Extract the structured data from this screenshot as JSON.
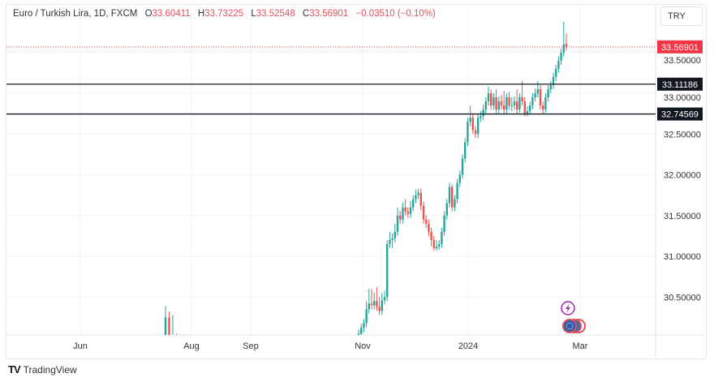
{
  "header": {
    "symbol": "Euro / Turkish Lira, 1D, FXCM",
    "open_label": "O",
    "open": "33.60411",
    "high_label": "H",
    "high": "33.73225",
    "low_label": "L",
    "low": "33.52548",
    "close_label": "C",
    "close": "33.56901",
    "change": "−0.03510 (−0.10%)"
  },
  "currency_button": "TRY",
  "footer": {
    "brand": "TradingView",
    "logo": "TV"
  },
  "colors": {
    "up": "#26a69a",
    "down": "#ef5350",
    "last_price": "#f23645",
    "line": "#131722"
  },
  "icons": [
    "lightning-event-icon",
    "economic-events-flags-icon"
  ],
  "chart_data": {
    "type": "candlestick",
    "ylim": [
      30.03,
      34.05
    ],
    "y_ticks": [
      "30.50000",
      "31.00000",
      "31.50000",
      "32.00000",
      "32.50000",
      "33.00000",
      "33.50000"
    ],
    "y_tick_values": [
      30.5,
      31.0,
      31.5,
      32.0,
      32.5,
      33.0,
      33.5
    ],
    "x_ticks": [
      "Jun",
      "Aug",
      "Sep",
      "Nov",
      "2024",
      "Mar"
    ],
    "grid": true,
    "last_price": {
      "value": 33.56901,
      "label": "33.56901"
    },
    "horizontal_lines": [
      {
        "value": 33.11186,
        "label": "33.11186"
      },
      {
        "value": 32.74569,
        "label": "32.74569"
      }
    ],
    "july_candles": [
      [
        30.0,
        30.39,
        29.9,
        30.25
      ],
      [
        30.25,
        30.32,
        29.9,
        29.95
      ],
      [
        29.95,
        30.28,
        29.9,
        29.95
      ],
      [
        29.95,
        30.05,
        29.9,
        29.92
      ],
      [
        29.92,
        30.0,
        29.9,
        29.9
      ],
      [
        29.9,
        30.04,
        29.9,
        29.9
      ]
    ],
    "candles": [
      [
        30.0,
        30.1,
        29.95,
        30.05
      ],
      [
        30.05,
        30.17,
        30.0,
        30.12
      ],
      [
        30.12,
        30.23,
        30.07,
        30.18
      ],
      [
        30.18,
        30.45,
        30.13,
        30.35
      ],
      [
        30.35,
        30.6,
        30.3,
        30.42
      ],
      [
        30.42,
        30.6,
        30.35,
        30.4
      ],
      [
        30.4,
        30.55,
        30.35,
        30.45
      ],
      [
        30.45,
        30.62,
        30.33,
        30.38
      ],
      [
        30.38,
        30.5,
        30.28,
        30.33
      ],
      [
        30.33,
        30.55,
        30.28,
        30.46
      ],
      [
        30.46,
        30.58,
        30.41,
        30.5
      ],
      [
        30.5,
        31.2,
        30.45,
        31.15
      ],
      [
        31.15,
        31.3,
        31.1,
        31.2
      ],
      [
        31.2,
        31.28,
        31.1,
        31.22
      ],
      [
        31.22,
        31.4,
        31.17,
        31.3
      ],
      [
        31.3,
        31.6,
        31.25,
        31.5
      ],
      [
        31.5,
        31.56,
        31.4,
        31.45
      ],
      [
        31.45,
        31.66,
        31.4,
        31.6
      ],
      [
        31.6,
        31.7,
        31.5,
        31.55
      ],
      [
        31.55,
        31.6,
        31.47,
        31.52
      ],
      [
        31.52,
        31.68,
        31.47,
        31.6
      ],
      [
        31.6,
        31.75,
        31.55,
        31.7
      ],
      [
        31.7,
        31.82,
        31.65,
        31.75
      ],
      [
        31.75,
        31.83,
        31.7,
        31.78
      ],
      [
        31.78,
        31.83,
        31.57,
        31.62
      ],
      [
        31.62,
        31.67,
        31.4,
        31.45
      ],
      [
        31.45,
        31.5,
        31.35,
        31.4
      ],
      [
        31.4,
        31.45,
        31.25,
        31.3
      ],
      [
        31.3,
        31.35,
        31.12,
        31.2
      ],
      [
        31.2,
        31.25,
        31.07,
        31.1
      ],
      [
        31.1,
        31.2,
        31.07,
        31.12
      ],
      [
        31.12,
        31.2,
        31.08,
        31.15
      ],
      [
        31.15,
        31.35,
        31.1,
        31.3
      ],
      [
        31.3,
        31.55,
        31.25,
        31.5
      ],
      [
        31.5,
        31.7,
        31.45,
        31.65
      ],
      [
        31.65,
        31.9,
        31.6,
        31.85
      ],
      [
        31.85,
        31.88,
        31.55,
        31.6
      ],
      [
        31.6,
        31.75,
        31.55,
        31.7
      ],
      [
        31.7,
        31.95,
        31.65,
        31.9
      ],
      [
        31.9,
        32.05,
        31.85,
        32.0
      ],
      [
        32.0,
        32.25,
        31.95,
        32.2
      ],
      [
        32.2,
        32.45,
        32.15,
        32.4
      ],
      [
        32.4,
        32.7,
        32.35,
        32.65
      ],
      [
        32.65,
        32.85,
        32.6,
        32.7
      ],
      [
        32.7,
        32.75,
        32.5,
        32.55
      ],
      [
        32.55,
        32.6,
        32.45,
        32.5
      ],
      [
        32.5,
        32.75,
        32.45,
        32.7
      ],
      [
        32.7,
        32.78,
        32.65,
        32.72
      ],
      [
        32.72,
        32.86,
        32.67,
        32.8
      ],
      [
        32.8,
        32.95,
        32.75,
        32.9
      ],
      [
        32.9,
        33.08,
        32.85,
        33.0
      ],
      [
        33.0,
        33.05,
        32.8,
        32.85
      ],
      [
        32.85,
        33.0,
        32.8,
        32.95
      ],
      [
        32.95,
        33.05,
        32.75,
        32.8
      ],
      [
        32.8,
        32.96,
        32.75,
        32.9
      ],
      [
        32.9,
        32.98,
        32.8,
        32.85
      ],
      [
        32.85,
        33.03,
        32.74,
        32.8
      ],
      [
        32.8,
        33.0,
        32.75,
        32.95
      ],
      [
        32.95,
        33.02,
        32.8,
        32.85
      ],
      [
        32.85,
        32.95,
        32.78,
        32.85
      ],
      [
        32.85,
        32.96,
        32.8,
        32.9
      ],
      [
        32.9,
        33.05,
        32.75,
        32.8
      ],
      [
        32.8,
        33.0,
        32.76,
        32.95
      ],
      [
        32.95,
        33.15,
        32.85,
        32.9
      ],
      [
        32.9,
        32.95,
        32.72,
        32.75
      ],
      [
        32.75,
        32.84,
        32.72,
        32.78
      ],
      [
        32.78,
        32.9,
        32.74,
        32.85
      ],
      [
        32.85,
        33.0,
        32.8,
        32.95
      ],
      [
        32.95,
        33.06,
        32.9,
        33.0
      ],
      [
        33.0,
        33.15,
        32.95,
        33.05
      ],
      [
        33.05,
        33.1,
        32.8,
        32.85
      ],
      [
        32.85,
        32.9,
        32.75,
        32.8
      ],
      [
        32.8,
        33.0,
        32.76,
        32.95
      ],
      [
        32.95,
        33.1,
        32.9,
        33.05
      ],
      [
        33.05,
        33.15,
        33.0,
        33.1
      ],
      [
        33.1,
        33.25,
        33.05,
        33.2
      ],
      [
        33.2,
        33.35,
        33.15,
        33.3
      ],
      [
        33.3,
        33.45,
        33.25,
        33.4
      ],
      [
        33.4,
        33.55,
        33.35,
        33.5
      ],
      [
        33.5,
        33.88,
        33.45,
        33.6
      ],
      [
        33.60411,
        33.73225,
        33.52548,
        33.56901
      ]
    ]
  }
}
